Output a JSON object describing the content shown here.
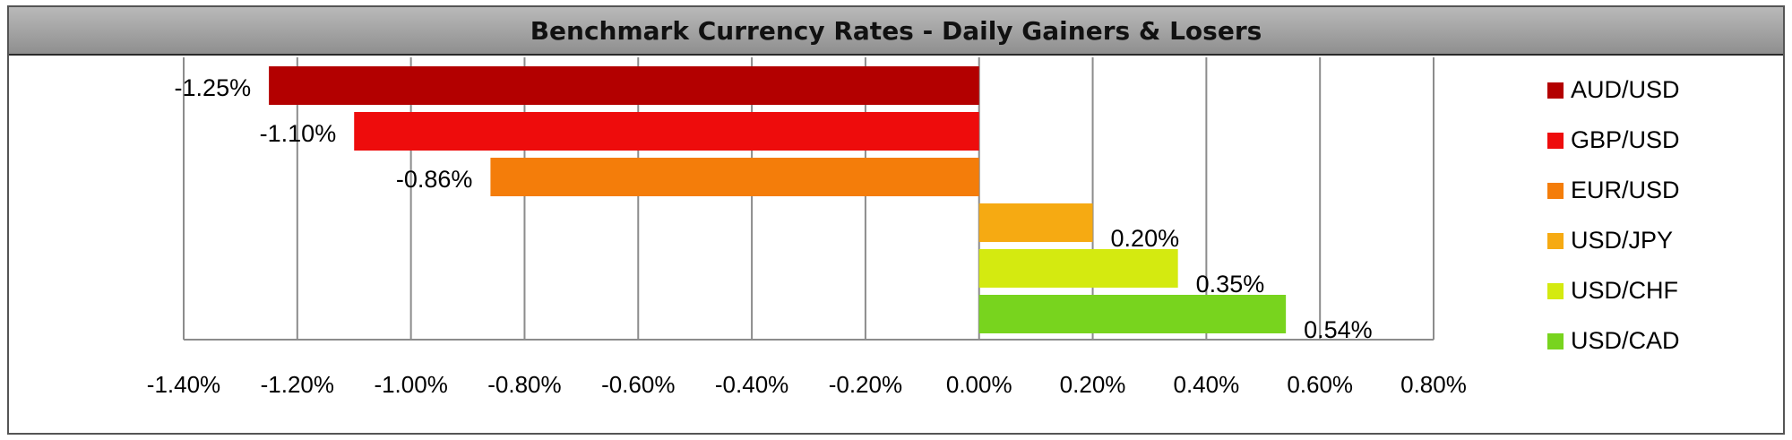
{
  "chart_data": {
    "type": "bar",
    "orientation": "horizontal",
    "title": "Benchmark Currency Rates - Daily Gainers & Losers",
    "xlabel": "",
    "ylabel": "",
    "xlim": [
      -1.4,
      0.8
    ],
    "xticks": [
      -1.4,
      -1.2,
      -1.0,
      -0.8,
      -0.6,
      -0.4,
      -0.2,
      0.0,
      0.2,
      0.4,
      0.6,
      0.8
    ],
    "xtick_labels": [
      "-1.40%",
      "-1.20%",
      "-1.00%",
      "-0.80%",
      "-0.60%",
      "-0.40%",
      "-0.20%",
      "0.00%",
      "0.20%",
      "0.40%",
      "0.60%",
      "0.80%"
    ],
    "grid": "vertical",
    "legend_position": "right",
    "series": [
      {
        "name": "AUD/USD",
        "value": -1.25,
        "label": "-1.25%",
        "color": "#b30000"
      },
      {
        "name": "GBP/USD",
        "value": -1.1,
        "label": "-1.10%",
        "color": "#ee0c0c"
      },
      {
        "name": "EUR/USD",
        "value": -0.86,
        "label": "-0.86%",
        "color": "#f47d0a"
      },
      {
        "name": "USD/JPY",
        "value": 0.2,
        "label": "0.20%",
        "color": "#f6aa12"
      },
      {
        "name": "USD/CHF",
        "value": 0.35,
        "label": "0.35%",
        "color": "#d4ea10"
      },
      {
        "name": "USD/CAD",
        "value": 0.54,
        "label": "0.54%",
        "color": "#78d41e"
      }
    ]
  }
}
